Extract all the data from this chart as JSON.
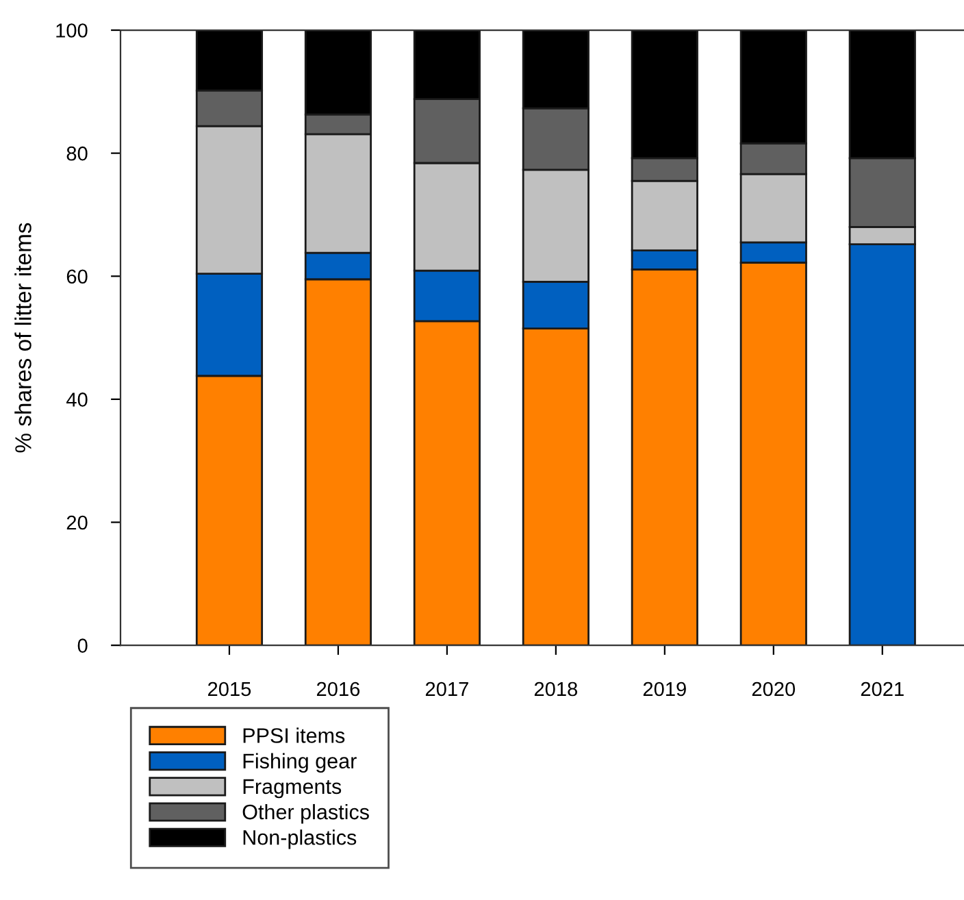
{
  "chart_data": {
    "type": "bar",
    "stacked": true,
    "ylabel": "% shares of litter items",
    "categories": [
      "2015",
      "2016",
      "2017",
      "2018",
      "2019",
      "2020",
      "2021"
    ],
    "series": [
      {
        "name": "PPSI items",
        "color": "#ff8000",
        "values": [
          43.8,
          59.5,
          52.7,
          51.5,
          61.1,
          62.2,
          0
        ]
      },
      {
        "name": "Fishing gear",
        "color": "#0060c0",
        "values": [
          16.6,
          4.3,
          8.2,
          7.6,
          3.1,
          3.3,
          65.2
        ]
      },
      {
        "name": "Fragments",
        "color": "#c0c0c0",
        "values": [
          24.0,
          19.3,
          17.5,
          18.2,
          11.3,
          11.1,
          2.8
        ]
      },
      {
        "name": "Other plastics",
        "color": "#606060",
        "values": [
          5.8,
          3.2,
          10.4,
          10.0,
          3.7,
          5.0,
          11.2
        ]
      },
      {
        "name": "Non-plastics",
        "color": "#000000",
        "values": [
          9.8,
          13.7,
          11.2,
          12.7,
          20.8,
          18.4,
          20.8
        ]
      }
    ],
    "ylim": [
      0,
      100
    ],
    "yticks": [
      0,
      20,
      40,
      60,
      80,
      100
    ],
    "grid": false,
    "legend": "bottom left"
  }
}
